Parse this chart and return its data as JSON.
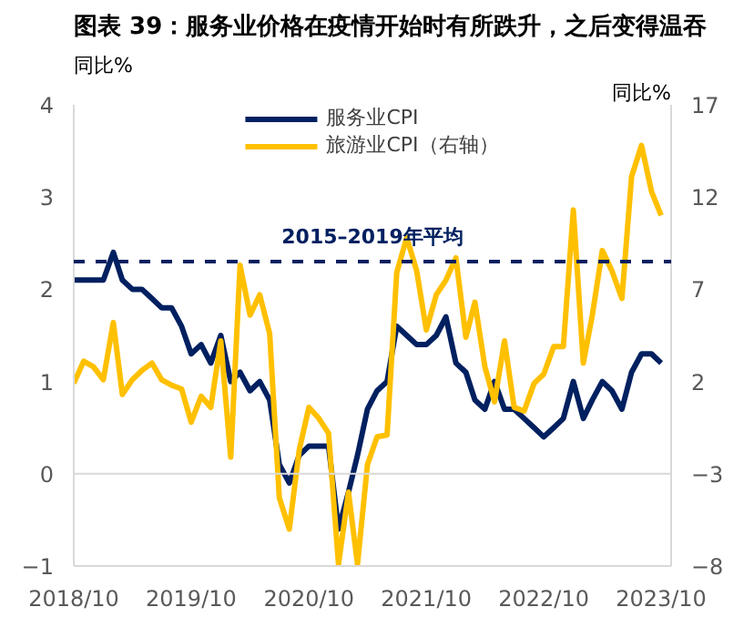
{
  "chart_data": {
    "type": "line",
    "title": "图表 39：服务业价格在疫情开始时有所跌升，之后变得温吞",
    "ylabel": "同比%",
    "y2label": "同比%",
    "x": [
      "2018-10",
      "2018-11",
      "2018-12",
      "2019-01",
      "2019-02",
      "2019-03",
      "2019-04",
      "2019-05",
      "2019-06",
      "2019-07",
      "2019-08",
      "2019-09",
      "2019-10",
      "2019-11",
      "2019-12",
      "2020-01",
      "2020-02",
      "2020-03",
      "2020-04",
      "2020-05",
      "2020-06",
      "2020-07",
      "2020-08",
      "2020-09",
      "2020-10",
      "2020-11",
      "2020-12",
      "2021-01",
      "2021-02",
      "2021-03",
      "2021-04",
      "2021-05",
      "2021-06",
      "2021-07",
      "2021-08",
      "2021-09",
      "2021-10",
      "2021-11",
      "2021-12",
      "2022-01",
      "2022-02",
      "2022-03",
      "2022-04",
      "2022-05",
      "2022-06",
      "2022-07",
      "2022-08",
      "2022-09",
      "2022-10",
      "2022-11",
      "2022-12",
      "2023-01",
      "2023-02",
      "2023-03",
      "2023-04",
      "2023-05",
      "2023-06",
      "2023-07",
      "2023-08",
      "2023-09",
      "2023-10"
    ],
    "series": [
      {
        "name": "服务业CPI",
        "color": "#002060",
        "values": [
          2.1,
          2.1,
          2.1,
          2.1,
          2.4,
          2.1,
          2.0,
          2.0,
          1.9,
          1.8,
          1.8,
          1.6,
          1.3,
          1.4,
          1.2,
          1.5,
          1.0,
          1.1,
          0.9,
          1.0,
          0.8,
          0.1,
          -0.1,
          0.2,
          0.3,
          0.3,
          0.3,
          -0.6,
          -0.2,
          0.2,
          0.7,
          0.9,
          1.0,
          1.6,
          1.5,
          1.4,
          1.4,
          1.5,
          1.7,
          1.2,
          1.1,
          0.8,
          0.7,
          1.0,
          0.7,
          0.7,
          0.6,
          0.5,
          0.4,
          0.5,
          0.6,
          1.0,
          0.6,
          0.8,
          1.0,
          0.9,
          0.7,
          1.1,
          1.3,
          1.3,
          1.2
        ]
      },
      {
        "name": "旅游业CPI（右轴）",
        "color": "#ffc000",
        "axis": "y2",
        "values": [
          1.9,
          3.1,
          2.8,
          2.1,
          5.2,
          1.3,
          2.1,
          2.6,
          3.0,
          2.1,
          1.8,
          1.6,
          -0.2,
          1.2,
          0.6,
          4.2,
          -2.1,
          8.3,
          5.6,
          6.7,
          4.6,
          -4.3,
          -6.0,
          -1.7,
          0.6,
          0.0,
          -0.8,
          -7.9,
          -4.0,
          -7.9,
          -2.5,
          -1.0,
          -0.9,
          7.9,
          9.8,
          8.0,
          4.8,
          6.7,
          7.5,
          8.7,
          4.4,
          6.3,
          2.8,
          0.9,
          4.2,
          0.6,
          0.4,
          1.9,
          2.4,
          3.9,
          3.9,
          11.3,
          3.0,
          5.6,
          9.1,
          8.0,
          6.5,
          13.1,
          14.8,
          12.3,
          11.0
        ]
      }
    ],
    "xlim": [
      "2018-10",
      "2023-11"
    ],
    "xticks": [
      {
        "value": "2018-10",
        "label": "2018/10"
      },
      {
        "value": "2019-10",
        "label": "2019/10"
      },
      {
        "value": "2020-10",
        "label": "2020/10"
      },
      {
        "value": "2021-10",
        "label": "2021/10"
      },
      {
        "value": "2022-10",
        "label": "2022/10"
      },
      {
        "value": "2023-10",
        "label": "2023/10"
      }
    ],
    "ylim": [
      -1,
      4
    ],
    "yticks": [
      -1,
      0,
      1,
      2,
      3,
      4
    ],
    "y2lim": [
      -8,
      17
    ],
    "y2ticks": [
      -8,
      -3,
      2,
      7,
      12,
      17
    ],
    "ref_lines": [
      {
        "axis": "y",
        "value": 2.3,
        "label": "2015–2019年平均",
        "color": "#002060",
        "line_style": "dashed"
      },
      {
        "axis": "y",
        "value": 0,
        "label": null,
        "color": "#d9d9d9",
        "line_style": "solid"
      }
    ],
    "grid": false,
    "legend": "top",
    "line_style": "solid",
    "marker": "none"
  }
}
